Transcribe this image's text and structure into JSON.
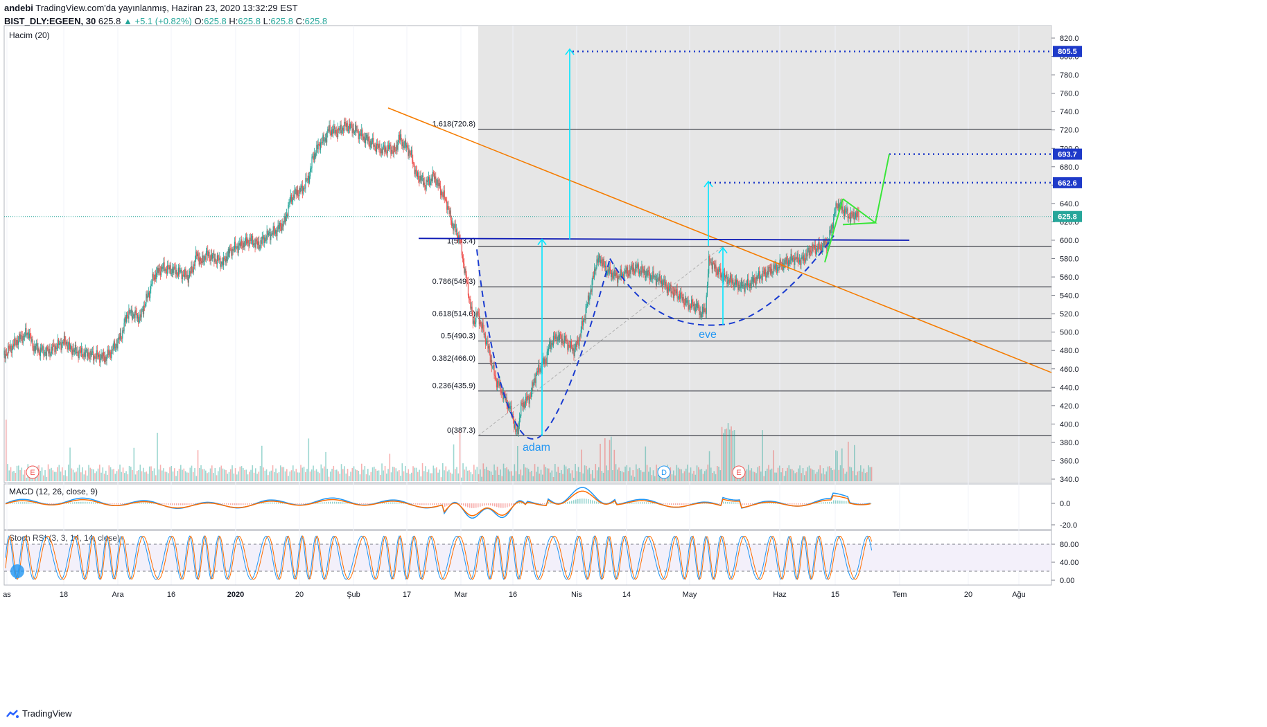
{
  "header": {
    "publisher": "andebi",
    "published_text": "TradingView.com'da yayınlanmış, Haziran 23, 2020 13:32:29 EST",
    "symbol": "BIST_DLY:EGEEN, 30",
    "last": "625.8",
    "change": "▲ +5.1 (+0.82%)",
    "o_label": "O:",
    "o": "625.8",
    "h_label": "H:",
    "h": "625.8",
    "l_label": "L:",
    "l": "625.8",
    "c_label": "C:",
    "c": "625.8"
  },
  "panes": {
    "volume_title": "Hacim (20)",
    "macd_title": "MACD (12, 26, close, 9)",
    "stoch_title": "Stoch RSI (3, 3, 14, 14, close)"
  },
  "footer": {
    "brand": "TradingView"
  },
  "colors": {
    "up": "#26a69a",
    "down": "#ef5350",
    "shade": "#e6e6e6",
    "trend": "#f57c00",
    "neck": "#0d1ab5",
    "target": "#00e5ff",
    "dotted": "#1e3ac9",
    "flag": "#39e639",
    "cup": "#1a3cd0",
    "macd": "#2196f3",
    "signal": "#ff6d00",
    "stoch_k": "#2196f3",
    "stoch_d": "#ff6d00"
  },
  "chart_data": {
    "type": "candlestick",
    "price_axis": {
      "ylim": [
        330,
        830
      ],
      "ticks": [
        "820.0",
        "800.0",
        "780.0",
        "760.0",
        "740.0",
        "720.0",
        "700.0",
        "680.0",
        "660.0",
        "640.0",
        "620.0",
        "600.0",
        "580.0",
        "560.0",
        "540.0",
        "520.0",
        "500.0",
        "480.0",
        "460.0",
        "440.0",
        "420.0",
        "400.0",
        "380.0",
        "360.0",
        "340.0"
      ],
      "markers": [
        {
          "value": 805.5,
          "label": "805.5",
          "color": "#1e3ac9"
        },
        {
          "value": 693.7,
          "label": "693.7",
          "color": "#1e3ac9"
        },
        {
          "value": 662.6,
          "label": "662.6",
          "color": "#1e3ac9"
        },
        {
          "value": 625.8,
          "label": "625.8",
          "color": "#26a69a"
        }
      ]
    },
    "time_axis": [
      "as",
      "18",
      "Ara",
      "16",
      "2020",
      "20",
      "Şub",
      "17",
      "Mar",
      "16",
      "Nis",
      "14",
      "May",
      "Haz",
      "15",
      "Tem",
      "20",
      "Ağu"
    ],
    "fibonacci": [
      {
        "label": "1.618(720.8)",
        "value": 720.8
      },
      {
        "label": "1(593.4)",
        "value": 593.4
      },
      {
        "label": "0.786(549.3)",
        "value": 549.3
      },
      {
        "label": "0.618(514.6)",
        "value": 514.6
      },
      {
        "label": "0.5(490.3)",
        "value": 490.3
      },
      {
        "label": "0.382(466.0)",
        "value": 466.0
      },
      {
        "label": "0.236(435.9)",
        "value": 435.9
      },
      {
        "label": "0(387.3)",
        "value": 387.3
      }
    ],
    "annotations": {
      "left_cup": "adam",
      "right_cup": "eve",
      "neckline_value": 601,
      "targets": [
        805.5,
        662.6,
        693.7
      ]
    },
    "event_markers": [
      "E",
      "D",
      "E"
    ],
    "price_series": [
      [
        0,
        475
      ],
      [
        0.7,
        482
      ],
      [
        1.4,
        490
      ],
      [
        2.1,
        495
      ],
      [
        2.8,
        500
      ],
      [
        3.2,
        485
      ],
      [
        4,
        480
      ],
      [
        5,
        478
      ],
      [
        6,
        485
      ],
      [
        7,
        490
      ],
      [
        7.5,
        482
      ],
      [
        8.5,
        478
      ],
      [
        10,
        475
      ],
      [
        11.5,
        472
      ],
      [
        12.3,
        480
      ],
      [
        13,
        490
      ],
      [
        13.5,
        500
      ],
      [
        14,
        520
      ],
      [
        14.6,
        520
      ],
      [
        15.5,
        515
      ],
      [
        16,
        530
      ],
      [
        16.6,
        545
      ],
      [
        17,
        560
      ],
      [
        18,
        570
      ],
      [
        19,
        568
      ],
      [
        20,
        565
      ],
      [
        21,
        560
      ],
      [
        21.5,
        570
      ],
      [
        22,
        585
      ],
      [
        22.5,
        575
      ],
      [
        23,
        585
      ],
      [
        24,
        580
      ],
      [
        25,
        575
      ],
      [
        25.5,
        585
      ],
      [
        26,
        590
      ],
      [
        27,
        595
      ],
      [
        28,
        600
      ],
      [
        29,
        595
      ],
      [
        30,
        605
      ],
      [
        31,
        610
      ],
      [
        31.5,
        615
      ],
      [
        32,
        620
      ],
      [
        32.5,
        640
      ],
      [
        33,
        650
      ],
      [
        34,
        655
      ],
      [
        34.8,
        670
      ],
      [
        35.2,
        690
      ],
      [
        36,
        705
      ],
      [
        36.6,
        710
      ],
      [
        37,
        720
      ],
      [
        38,
        718
      ],
      [
        39,
        725
      ],
      [
        40,
        720
      ],
      [
        41,
        712
      ],
      [
        42,
        705
      ],
      [
        43,
        698
      ],
      [
        44,
        700
      ],
      [
        44.6,
        696
      ],
      [
        45,
        712
      ],
      [
        45.5,
        705
      ],
      [
        46,
        700
      ],
      [
        46.5,
        690
      ],
      [
        47,
        670
      ],
      [
        47.5,
        668
      ],
      [
        48,
        660
      ],
      [
        49,
        670
      ],
      [
        49.5,
        660
      ],
      [
        50,
        650
      ],
      [
        50.5,
        640
      ],
      [
        51,
        620
      ],
      [
        52,
        600
      ],
      [
        52.3,
        580
      ],
      [
        53,
        540
      ],
      [
        53.5,
        510
      ],
      [
        54,
        520
      ],
      [
        55,
        490
      ],
      [
        55.5,
        470
      ],
      [
        56,
        450
      ],
      [
        57,
        430
      ],
      [
        57.5,
        420
      ],
      [
        58,
        410
      ],
      [
        58.3,
        390
      ],
      [
        58.6,
        395
      ],
      [
        59,
        420
      ],
      [
        60,
        430
      ],
      [
        60.5,
        450
      ],
      [
        61,
        460
      ],
      [
        61.8,
        470
      ],
      [
        62,
        480
      ],
      [
        62.5,
        490
      ],
      [
        63,
        495
      ],
      [
        64,
        490
      ],
      [
        64.5,
        485
      ],
      [
        65,
        480
      ],
      [
        65.5,
        490
      ],
      [
        66,
        510
      ],
      [
        66.5,
        530
      ],
      [
        67,
        550
      ],
      [
        67.5,
        575
      ],
      [
        68,
        580
      ],
      [
        68.5,
        570
      ],
      [
        69,
        565
      ],
      [
        70,
        560
      ],
      [
        71,
        565
      ],
      [
        72,
        570
      ],
      [
        73,
        565
      ],
      [
        74,
        560
      ],
      [
        75,
        555
      ],
      [
        76,
        545
      ],
      [
        77,
        540
      ],
      [
        77.5,
        535
      ],
      [
        78,
        530
      ],
      [
        79,
        528
      ],
      [
        79.5,
        520
      ],
      [
        80,
        525
      ],
      [
        80.4,
        580
      ],
      [
        81,
        570
      ],
      [
        82,
        560
      ],
      [
        83,
        555
      ],
      [
        84,
        550
      ],
      [
        85,
        552
      ],
      [
        86,
        560
      ],
      [
        87,
        565
      ],
      [
        88,
        570
      ],
      [
        89,
        575
      ],
      [
        90,
        580
      ],
      [
        91,
        578
      ],
      [
        92,
        590
      ],
      [
        93,
        592
      ],
      [
        94,
        598
      ],
      [
        94.5,
        620
      ],
      [
        95,
        640
      ],
      [
        96,
        630
      ],
      [
        96.5,
        625
      ],
      [
        97,
        628
      ],
      [
        97.5,
        625.8
      ]
    ],
    "macd": {
      "range": [
        -25,
        20
      ],
      "ticks": [
        "0.0",
        "-20.0"
      ]
    },
    "stoch_rsi": {
      "range": [
        0,
        100
      ],
      "ticks": [
        "80.00",
        "40.00",
        "0.00"
      ],
      "bands": [
        80,
        20
      ]
    }
  }
}
